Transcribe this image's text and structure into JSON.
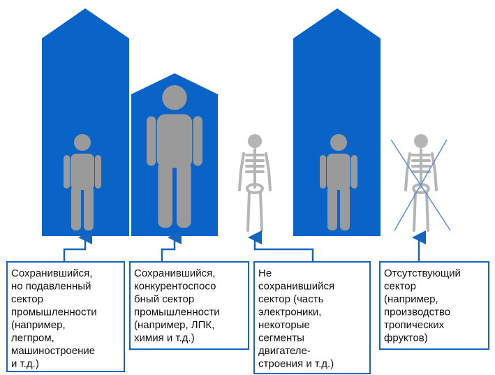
{
  "boxes": [
    [
      "Сохранившийся,",
      "но подавленный",
      "сектор",
      "промышленности",
      "(например,",
      "легпром,",
      "машиностроение",
      "и т.д.)"
    ],
    [
      "Сохранившийся,",
      "конкурентоспосо",
      "бный сектор",
      "промышленности",
      "(например, ЛПК,",
      "химия и т.д.)"
    ],
    [
      "Не",
      "сохранившийся",
      "сектор (часть",
      "электроники,",
      "некоторые",
      "сегменты",
      "двигателе-",
      "строения и т.д.)"
    ],
    [
      "Отсутствующий",
      "сектор",
      "(например,",
      "производство",
      "тропических",
      "фруктов)"
    ]
  ]
}
